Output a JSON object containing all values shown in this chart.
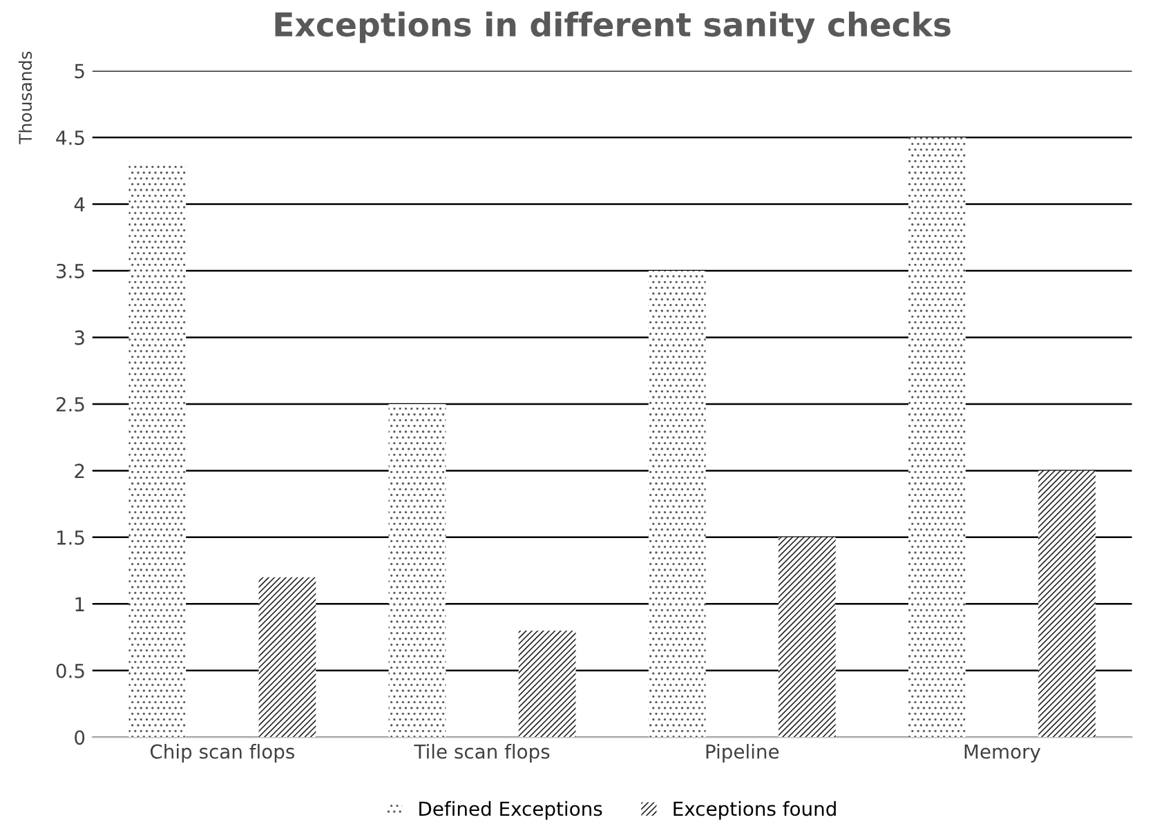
{
  "chart_data": {
    "type": "bar",
    "title": "Exceptions in different sanity checks",
    "ylabel": "Thousands",
    "categories": [
      "Chip scan flops",
      "Tile scan flops",
      "Pipeline",
      "Memory"
    ],
    "series": [
      {
        "name": "Defined Exceptions",
        "color": "#595959",
        "values": [
          4.3,
          2.5,
          3.5,
          4.5
        ]
      },
      {
        "name": "Exceptions found",
        "color": "#262626",
        "values": [
          1.2,
          0.8,
          1.5,
          2.0
        ]
      }
    ],
    "ylim": [
      0,
      5
    ],
    "yticks": [
      0,
      0.5,
      1,
      1.5,
      2,
      2.5,
      3,
      3.5,
      4,
      4.5,
      5
    ],
    "grid": "y",
    "legend": "bottom"
  }
}
